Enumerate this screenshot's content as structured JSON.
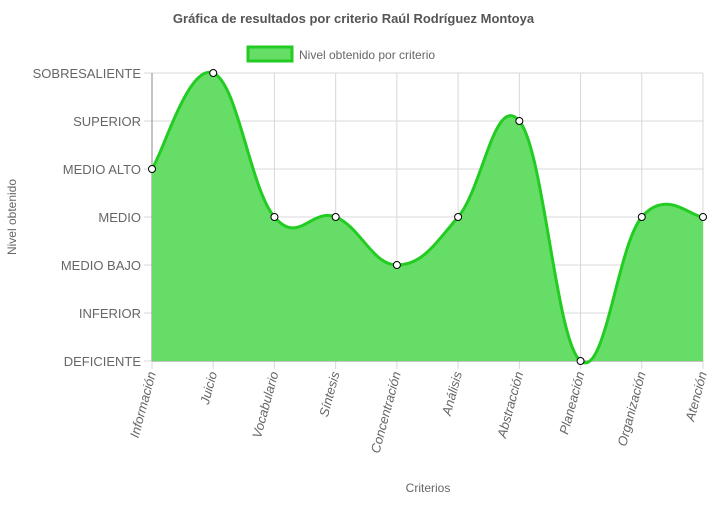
{
  "chart_data": {
    "type": "area",
    "title": "Gráfica de resultados por criterio Raúl Rodríguez Montoya",
    "xlabel": "Criterios",
    "ylabel": "Nivel obtenido",
    "categories": [
      "Información",
      "Juicio",
      "Vocabulario",
      "Síntesis",
      "Concentración",
      "Análisis",
      "Abstracción",
      "Planeación",
      "Organización",
      "Atención"
    ],
    "levels": [
      "DEFICIENTE",
      "INFERIOR",
      "MEDIO BAJO",
      "MEDIO",
      "MEDIO ALTO",
      "SUPERIOR",
      "SOBRESALIENTE"
    ],
    "series": [
      {
        "name": "Nivel obtenido por criterio",
        "values": [
          4,
          6,
          3,
          3,
          2,
          3,
          5,
          0,
          3,
          3
        ]
      }
    ],
    "ylim": [
      0,
      6
    ],
    "grid": true,
    "legend_position": "top",
    "colors": {
      "fill": "#66dd66",
      "line": "#22cc22",
      "point_fill": "#ffffff",
      "point_stroke": "#000000",
      "grid": "#d8d8d8",
      "axis": "#888888",
      "text": "#666666",
      "title": "#555555"
    }
  }
}
